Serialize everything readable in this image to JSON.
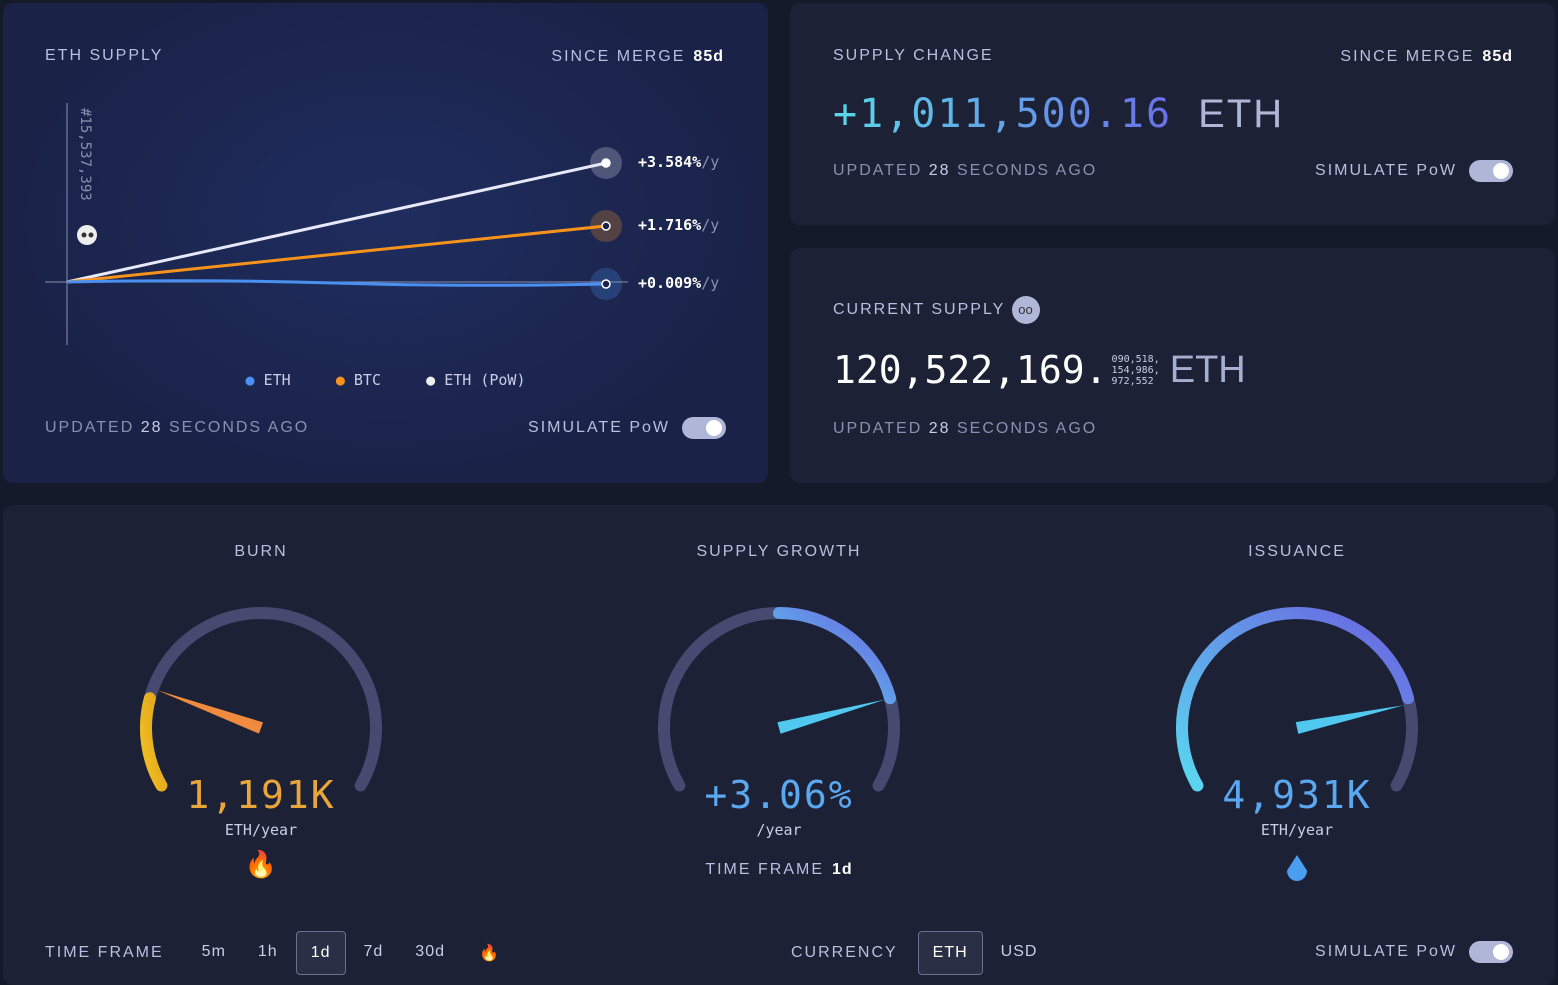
{
  "eth_supply": {
    "title": "ETH SUPPLY",
    "since_label": "SINCE MERGE",
    "since_value": "85d",
    "block": "#15,537,393",
    "series": [
      {
        "name": "ETH (PoW)",
        "rate": "+3.584%",
        "unit": "/y",
        "color": "#e8e8f8"
      },
      {
        "name": "BTC",
        "rate": "+1.716%",
        "unit": "/y",
        "color": "#f7931a"
      },
      {
        "name": "ETH",
        "rate": "+0.009%",
        "unit": "/y",
        "color": "#4a90f0"
      }
    ],
    "legend": [
      "ETH",
      "BTC",
      "ETH (PoW)"
    ],
    "updated": "UPDATED",
    "updated_num": "28",
    "updated_rest": "SECONDS AGO",
    "simulate": "SIMULATE PoW"
  },
  "supply_change": {
    "title": "SUPPLY CHANGE",
    "since_label": "SINCE MERGE",
    "since_value": "85d",
    "value": "+1,011,500.16",
    "unit": "ETH",
    "updated": "UPDATED",
    "updated_num": "28",
    "updated_rest": "SECONDS AGO",
    "simulate": "SIMULATE PoW"
  },
  "current_supply": {
    "title": "CURRENT SUPPLY",
    "value": "120,522,169.",
    "decimals": [
      "090,518,",
      "154,986,",
      "972,552"
    ],
    "unit": "ETH",
    "updated": "UPDATED",
    "updated_num": "28",
    "updated_rest": "SECONDS AGO"
  },
  "gauges": [
    {
      "title": "BURN",
      "value": "1,191K",
      "unit": "ETH/year",
      "color": "#e8a53a",
      "fraction": 0.19
    },
    {
      "title": "SUPPLY GROWTH",
      "value": "+3.06%",
      "unit": "/year",
      "color": "#5aa8f0",
      "fraction": 0.6,
      "timeframe_label": "TIME FRAME",
      "timeframe_value": "1d"
    },
    {
      "title": "ISSUANCE",
      "value": "4,931K",
      "unit": "ETH/year",
      "color": "#5aa8f0",
      "fraction": 0.85
    }
  ],
  "footer": {
    "timeframe_label": "TIME FRAME",
    "timeframes": [
      "5m",
      "1h",
      "1d",
      "7d",
      "30d"
    ],
    "selected": "1d",
    "currency_label": "CURRENCY",
    "currencies": [
      "ETH",
      "USD"
    ],
    "currency_selected": "ETH",
    "simulate": "SIMULATE PoW"
  }
}
